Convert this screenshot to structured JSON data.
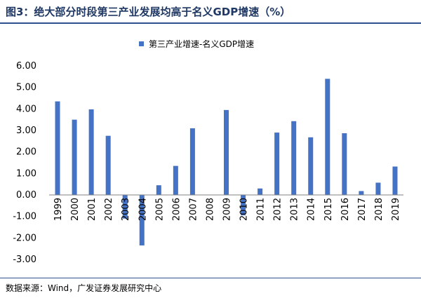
{
  "header": {
    "title": "图3：绝大部分时段第三产业发展均高于名义GDP增速（%）"
  },
  "footer": {
    "source": "数据来源：Wind，广发证券发展研究中心"
  },
  "colors": {
    "bar": "#4472c4",
    "title": "#1f3864",
    "rule": "#2e4f8f"
  },
  "chart_data": {
    "type": "bar",
    "title": "",
    "xlabel": "",
    "ylabel": "",
    "categories": [
      "1999",
      "2000",
      "2001",
      "2002",
      "2003",
      "2004",
      "2005",
      "2006",
      "2007",
      "2008",
      "2009",
      "2010",
      "2011",
      "2012",
      "2013",
      "2014",
      "2015",
      "2016",
      "2017",
      "2018",
      "2019"
    ],
    "series": [
      {
        "name": "第三产业增速-名义GDP增速",
        "values": [
          4.35,
          3.5,
          3.98,
          2.75,
          -1.1,
          -2.35,
          0.45,
          1.35,
          3.1,
          0.0,
          3.95,
          -0.95,
          0.3,
          2.9,
          3.43,
          2.68,
          5.4,
          2.87,
          0.18,
          0.57,
          1.32
        ]
      }
    ],
    "yticks": [
      "6.00",
      "5.00",
      "4.00",
      "3.00",
      "2.00",
      "1.00",
      "0.00",
      "-1.00",
      "-2.00",
      "-3.00"
    ],
    "ylim": [
      -3,
      6
    ],
    "grid": false,
    "legend_position": "top-center"
  }
}
